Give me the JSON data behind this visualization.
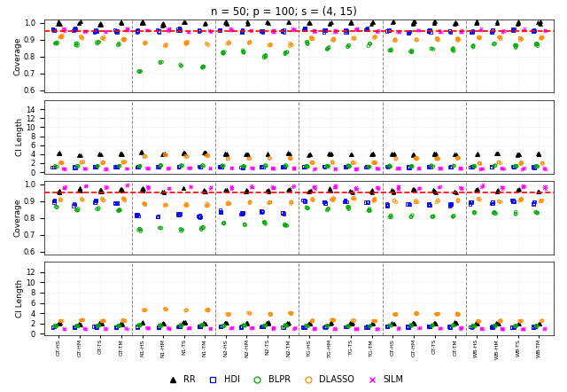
{
  "title": "n = 50; p = 100; s = (4, 15)",
  "xlabels": [
    "GT-HS",
    "GT-HM",
    "GT-TS",
    "GT-TM",
    "N1-HS",
    "N1-HM",
    "N1-TS",
    "N1-TM",
    "N2-HS",
    "N2-HM",
    "N2-TS",
    "N2-TM",
    "TG-HS",
    "TG-HM",
    "TG-TS",
    "TG-TM",
    "GT-HS",
    "GT-HM",
    "GT-TS",
    "GT-TM",
    "WB-HS",
    "WB-HM",
    "WB-TS",
    "WB-TM"
  ],
  "methods": [
    "RR",
    "HDI",
    "BLPR",
    "DLASSO",
    "SILM"
  ],
  "colors": {
    "RR": "#000000",
    "HDI": "#0000EE",
    "BLPR": "#00AA00",
    "DLASSO": "#FF8C00",
    "SILM": "#FF00FF"
  },
  "markers": {
    "RR": "^",
    "HDI": "s",
    "BLPR": "o",
    "DLASSO": "o",
    "SILM": "x"
  },
  "filled": {
    "RR": true,
    "HDI": false,
    "BLPR": false,
    "DLASSO": false,
    "SILM": false
  },
  "coverage_nominal": 0.95,
  "group_separators": [
    3.5,
    7.5,
    11.5,
    15.5,
    19.5
  ],
  "panel1": {
    "ylabel": "Coverage",
    "ylim": [
      0.585,
      1.02
    ],
    "yticks": [
      0.6,
      0.7,
      0.8,
      0.9,
      1.0
    ],
    "nominal_line": true,
    "RR": [
      1.0,
      1.0,
      0.99,
      1.0,
      1.0,
      0.99,
      1.0,
      1.0,
      1.0,
      1.0,
      1.0,
      1.0,
      1.0,
      1.0,
      1.0,
      1.0,
      1.0,
      1.0,
      1.0,
      1.0,
      1.0,
      1.0,
      1.0,
      1.0
    ],
    "HDI": [
      0.96,
      0.96,
      0.95,
      0.95,
      0.95,
      0.95,
      0.96,
      0.95,
      0.95,
      0.95,
      0.95,
      0.95,
      0.96,
      0.95,
      0.95,
      0.96,
      0.95,
      0.94,
      0.95,
      0.95,
      0.95,
      0.95,
      0.96,
      0.95
    ],
    "BLPR": [
      0.88,
      0.87,
      0.88,
      0.87,
      0.71,
      0.76,
      0.75,
      0.74,
      0.82,
      0.83,
      0.8,
      0.82,
      0.88,
      0.85,
      0.86,
      0.87,
      0.84,
      0.83,
      0.85,
      0.84,
      0.86,
      0.87,
      0.86,
      0.87
    ],
    "DLASSO": [
      0.92,
      0.91,
      0.91,
      0.9,
      0.88,
      0.87,
      0.88,
      0.87,
      0.88,
      0.88,
      0.87,
      0.87,
      0.91,
      0.9,
      0.91,
      0.91,
      0.9,
      0.9,
      0.9,
      0.9,
      0.91,
      0.91,
      0.9,
      0.91
    ],
    "SILM": [
      0.96,
      0.95,
      0.95,
      0.96,
      0.95,
      0.96,
      0.95,
      0.95,
      0.96,
      0.95,
      0.95,
      0.96,
      0.95,
      0.95,
      0.96,
      0.95,
      0.95,
      0.96,
      0.95,
      0.95,
      0.96,
      0.95,
      0.96,
      0.95
    ]
  },
  "panel2": {
    "ylabel": "CI Length",
    "ylim": [
      -0.3,
      16
    ],
    "yticks": [
      0,
      2,
      4,
      6,
      8,
      10,
      12,
      14
    ],
    "nominal_line": false,
    "RR": [
      4.2,
      3.8,
      4.0,
      4.1,
      4.5,
      4.0,
      4.2,
      4.3,
      4.1,
      4.0,
      4.0,
      4.2,
      3.9,
      4.1,
      4.0,
      4.0,
      4.0,
      3.9,
      4.1,
      4.0,
      4.0,
      4.1,
      3.9,
      4.0
    ],
    "HDI": [
      1.2,
      1.1,
      1.2,
      1.2,
      1.2,
      1.2,
      1.2,
      1.2,
      1.2,
      1.1,
      1.2,
      1.2,
      1.2,
      1.2,
      1.2,
      1.2,
      1.2,
      1.1,
      1.2,
      1.2,
      1.2,
      1.2,
      1.2,
      1.1
    ],
    "BLPR": [
      1.3,
      1.4,
      1.3,
      1.3,
      1.4,
      1.5,
      1.4,
      1.4,
      1.4,
      1.3,
      1.4,
      1.4,
      1.3,
      1.3,
      1.4,
      1.3,
      1.4,
      1.3,
      1.4,
      1.4,
      1.3,
      1.4,
      1.3,
      1.3
    ],
    "DLASSO": [
      2.1,
      2.2,
      2.1,
      2.2,
      3.5,
      3.8,
      3.5,
      3.6,
      3.0,
      3.1,
      3.0,
      3.1,
      2.1,
      2.2,
      2.1,
      2.1,
      3.0,
      3.0,
      3.0,
      3.1,
      2.0,
      2.1,
      2.0,
      2.0
    ],
    "SILM": [
      0.8,
      0.8,
      0.8,
      0.8,
      0.9,
      0.9,
      0.9,
      0.9,
      0.9,
      0.9,
      0.9,
      0.9,
      0.8,
      0.8,
      0.8,
      0.8,
      0.9,
      0.9,
      0.9,
      0.9,
      0.8,
      0.8,
      0.8,
      0.8
    ]
  },
  "panel3": {
    "ylabel": "Coverage",
    "ylim": [
      0.585,
      1.02
    ],
    "yticks": [
      0.6,
      0.7,
      0.8,
      0.9,
      1.0
    ],
    "nominal_line": true,
    "RR": [
      0.96,
      0.97,
      0.96,
      0.97,
      0.97,
      0.96,
      0.97,
      0.96,
      0.97,
      0.96,
      0.96,
      0.97,
      0.96,
      0.97,
      0.96,
      0.96,
      0.96,
      0.97,
      0.96,
      0.96,
      0.97,
      0.96,
      0.97,
      0.96
    ],
    "HDI": [
      0.9,
      0.88,
      0.9,
      0.89,
      0.82,
      0.81,
      0.82,
      0.81,
      0.84,
      0.83,
      0.84,
      0.83,
      0.9,
      0.89,
      0.9,
      0.89,
      0.88,
      0.88,
      0.88,
      0.88,
      0.89,
      0.89,
      0.9,
      0.89
    ],
    "BLPR": [
      0.86,
      0.85,
      0.86,
      0.85,
      0.73,
      0.74,
      0.73,
      0.74,
      0.77,
      0.76,
      0.77,
      0.76,
      0.86,
      0.85,
      0.86,
      0.85,
      0.81,
      0.81,
      0.81,
      0.81,
      0.83,
      0.83,
      0.83,
      0.83
    ],
    "DLASSO": [
      0.91,
      0.91,
      0.91,
      0.91,
      0.88,
      0.88,
      0.88,
      0.88,
      0.89,
      0.89,
      0.89,
      0.89,
      0.91,
      0.91,
      0.91,
      0.91,
      0.9,
      0.9,
      0.9,
      0.9,
      0.91,
      0.9,
      0.91,
      0.9
    ],
    "SILM": [
      0.98,
      0.99,
      0.98,
      0.99,
      0.98,
      0.98,
      0.99,
      0.98,
      0.98,
      0.99,
      0.98,
      0.99,
      0.98,
      0.99,
      0.98,
      0.98,
      0.98,
      0.98,
      0.99,
      0.98,
      0.99,
      0.98,
      0.99,
      0.98
    ]
  },
  "panel4": {
    "ylabel": "CI Length",
    "ylim": [
      -0.3,
      14
    ],
    "yticks": [
      0,
      2,
      4,
      6,
      8,
      10,
      12
    ],
    "nominal_line": false,
    "RR": [
      2.0,
      1.8,
      2.0,
      1.9,
      2.2,
      2.0,
      2.2,
      2.1,
      2.1,
      2.0,
      2.1,
      2.1,
      2.0,
      2.0,
      2.0,
      2.0,
      2.1,
      2.0,
      2.1,
      2.1,
      2.0,
      2.0,
      2.0,
      2.0
    ],
    "HDI": [
      1.3,
      1.2,
      1.3,
      1.3,
      1.4,
      1.3,
      1.4,
      1.4,
      1.4,
      1.3,
      1.4,
      1.3,
      1.3,
      1.3,
      1.3,
      1.3,
      1.4,
      1.3,
      1.4,
      1.3,
      1.3,
      1.3,
      1.3,
      1.3
    ],
    "BLPR": [
      1.5,
      1.5,
      1.5,
      1.5,
      1.6,
      1.6,
      1.6,
      1.6,
      1.6,
      1.6,
      1.6,
      1.6,
      1.5,
      1.5,
      1.5,
      1.5,
      1.6,
      1.6,
      1.6,
      1.6,
      1.5,
      1.5,
      1.5,
      1.5
    ],
    "DLASSO": [
      2.5,
      2.6,
      2.5,
      2.5,
      4.5,
      4.8,
      4.5,
      4.6,
      3.8,
      4.0,
      3.8,
      3.9,
      2.5,
      2.6,
      2.5,
      2.5,
      3.8,
      3.9,
      3.8,
      3.8,
      2.4,
      2.5,
      2.4,
      2.5
    ],
    "SILM": [
      1.0,
      1.0,
      1.0,
      1.0,
      1.1,
      1.1,
      1.1,
      1.1,
      1.1,
      1.1,
      1.1,
      1.1,
      1.0,
      1.0,
      1.0,
      1.0,
      1.1,
      1.1,
      1.1,
      1.1,
      1.0,
      1.0,
      1.0,
      1.0
    ]
  }
}
